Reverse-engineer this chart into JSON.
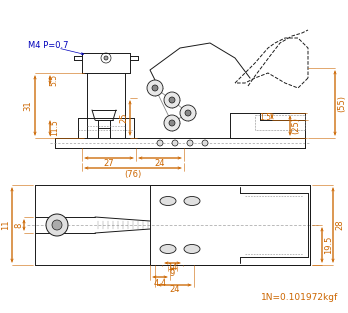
{
  "bg_color": "#ffffff",
  "lc": "#1a1a1a",
  "dc": "#cc6600",
  "bc": "#0000bb",
  "fig_width": 3.48,
  "fig_height": 3.13,
  "dpi": 100,
  "note": "1N=0.101972kgf",
  "m4": "M4 P=0.7"
}
